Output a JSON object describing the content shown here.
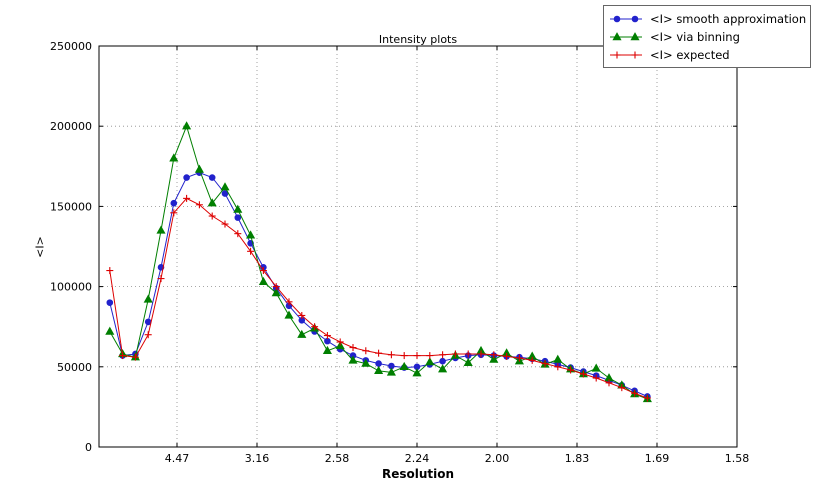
{
  "chart_data": {
    "type": "line",
    "title": "Intensity plots",
    "xlabel": "Resolution",
    "ylabel": "<I>",
    "grid": true,
    "grid_style": "dotted",
    "legend_position": "upper right outside",
    "xlim": [
      0.00125,
      0.4
    ],
    "ylim": [
      0,
      250000
    ],
    "x_axis_note": "x axis is 1/d^2; tick labels show resolution d in Angstrom",
    "x_ticks": [
      {
        "pos": 0.05,
        "label": "4.47"
      },
      {
        "pos": 0.1,
        "label": "3.16"
      },
      {
        "pos": 0.15,
        "label": "2.58"
      },
      {
        "pos": 0.2,
        "label": "2.24"
      },
      {
        "pos": 0.25,
        "label": "2.00"
      },
      {
        "pos": 0.3,
        "label": "1.83"
      },
      {
        "pos": 0.35,
        "label": "1.69"
      },
      {
        "pos": 0.4,
        "label": "1.58"
      }
    ],
    "y_ticks": [
      {
        "pos": 0,
        "label": "0"
      },
      {
        "pos": 50000,
        "label": "50000"
      },
      {
        "pos": 100000,
        "label": "100000"
      },
      {
        "pos": 150000,
        "label": "150000"
      },
      {
        "pos": 200000,
        "label": "200000"
      },
      {
        "pos": 250000,
        "label": "250000"
      }
    ],
    "x": [
      0.008,
      0.016,
      0.024,
      0.032,
      0.04,
      0.048,
      0.056,
      0.064,
      0.072,
      0.08,
      0.088,
      0.096,
      0.104,
      0.112,
      0.12,
      0.128,
      0.136,
      0.144,
      0.152,
      0.16,
      0.168,
      0.176,
      0.184,
      0.192,
      0.2,
      0.208,
      0.216,
      0.224,
      0.232,
      0.24,
      0.248,
      0.256,
      0.264,
      0.272,
      0.28,
      0.288,
      0.296,
      0.304,
      0.312,
      0.32,
      0.328,
      0.336,
      0.344
    ],
    "series": [
      {
        "name": "<I> smooth approximation",
        "color": "#2222cc",
        "marker": "circle",
        "values": [
          90000,
          57000,
          58000,
          78000,
          112000,
          152000,
          168000,
          171000,
          168000,
          158000,
          143000,
          127000,
          112000,
          99000,
          88000,
          79000,
          72000,
          66000,
          61000,
          57000,
          54000,
          52000,
          50500,
          49500,
          50000,
          51500,
          53500,
          55500,
          57000,
          57500,
          57000,
          56500,
          56000,
          55000,
          53500,
          51500,
          49500,
          47000,
          44500,
          41500,
          38500,
          35000,
          31500
        ]
      },
      {
        "name": "<I> via binning",
        "color": "#007f00",
        "marker": "triangle",
        "values": [
          72000,
          58000,
          56000,
          92000,
          135000,
          180000,
          200000,
          173000,
          152000,
          162000,
          148000,
          132000,
          103000,
          96000,
          82000,
          70000,
          74000,
          60000,
          63000,
          54000,
          52000,
          47500,
          46500,
          50000,
          46000,
          53000,
          48500,
          57000,
          52500,
          60000,
          54500,
          58500,
          53500,
          56500,
          51500,
          54500,
          48500,
          45500,
          49000,
          43000,
          38500,
          33000,
          30000
        ]
      },
      {
        "name": "<I> expected",
        "color": "#dd0000",
        "marker": "plus",
        "values": [
          110000,
          57000,
          56000,
          70000,
          105000,
          146000,
          155000,
          151000,
          144000,
          139000,
          133000,
          122000,
          110000,
          100000,
          90500,
          82000,
          75000,
          69500,
          65500,
          62000,
          60000,
          58500,
          57500,
          57000,
          57000,
          57000,
          57500,
          58000,
          58000,
          58000,
          57500,
          56500,
          55500,
          54000,
          52000,
          50000,
          48000,
          45500,
          43000,
          40000,
          37000,
          33500,
          30500
        ]
      }
    ]
  }
}
